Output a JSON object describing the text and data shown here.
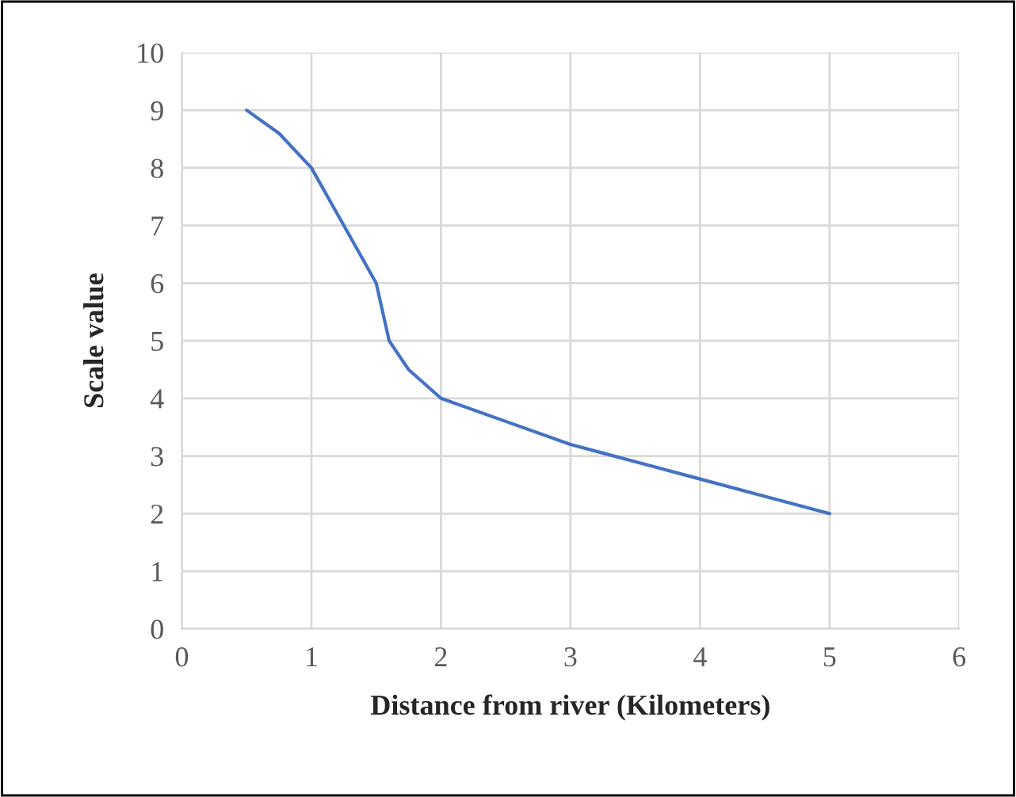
{
  "chart_data": {
    "type": "line",
    "xlabel": "Distance from river (Kilometers)",
    "ylabel": "Scale value",
    "x": [
      0.5,
      0.75,
      1,
      1.25,
      1.5,
      1.6,
      1.75,
      2,
      2.5,
      3,
      3.5,
      4,
      4.5,
      5
    ],
    "series": [
      {
        "color": "#4472c4",
        "values": [
          9,
          8.6,
          8,
          7,
          6,
          5,
          4.5,
          4,
          3.6,
          3.2,
          2.9,
          2.6,
          2.3,
          2
        ]
      }
    ],
    "xlim": [
      0,
      6
    ],
    "xticks": [
      0,
      1,
      2,
      3,
      4,
      5,
      6
    ],
    "ylim": [
      0,
      10
    ],
    "yticks": [
      0,
      1,
      2,
      3,
      4,
      5,
      6,
      7,
      8,
      9,
      10
    ],
    "grid": true,
    "legend": false,
    "marker": "none",
    "line_style": "solid"
  }
}
